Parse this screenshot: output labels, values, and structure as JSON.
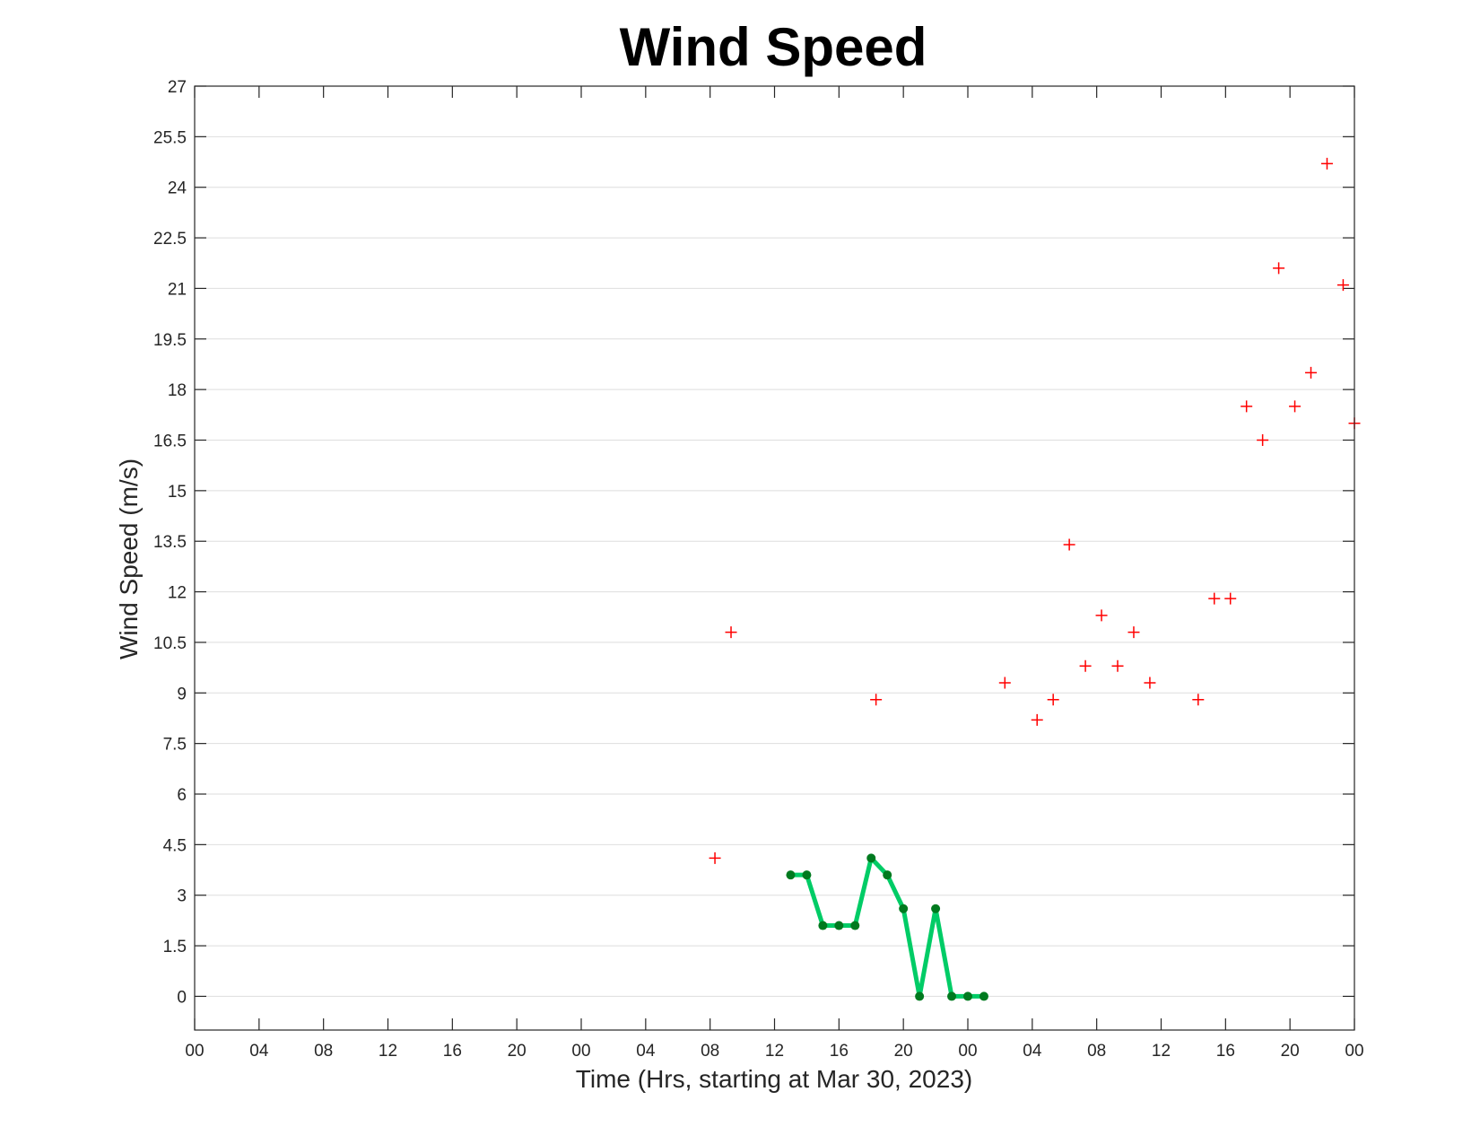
{
  "chart_data": {
    "type": "line",
    "title": "Wind Speed",
    "xlabel": "Time (Hrs, starting at Mar 30, 2023)",
    "ylabel": "Wind Speed (m/s)",
    "x_unit": "hours",
    "xlim": [
      0,
      72
    ],
    "ylim": [
      -1,
      27
    ],
    "yticks": [
      0,
      1.5,
      3,
      4.5,
      6,
      7.5,
      9,
      10.5,
      12,
      13.5,
      15,
      16.5,
      18,
      19.5,
      21,
      22.5,
      24,
      25.5,
      27
    ],
    "ytick_labels": [
      "0",
      "1.5",
      "3",
      "4.5",
      "6",
      "7.5",
      "9",
      "10.5",
      "12",
      "13.5",
      "15",
      "16.5",
      "18",
      "19.5",
      "21",
      "22.5",
      "24",
      "25.5",
      "27"
    ],
    "xticks": [
      0,
      4,
      8,
      12,
      16,
      20,
      24,
      28,
      32,
      36,
      40,
      44,
      48,
      52,
      56,
      60,
      64,
      68,
      72
    ],
    "xtick_labels": [
      "00",
      "04",
      "08",
      "12",
      "16",
      "20",
      "00",
      "04",
      "08",
      "12",
      "16",
      "20",
      "00",
      "04",
      "08",
      "12",
      "16",
      "20",
      "00"
    ],
    "grid": "horizontal",
    "series": [
      {
        "style": "line-with-markers",
        "color": "#00cc66",
        "marker_color": "#007a1f",
        "x": [
          37,
          38,
          39,
          40,
          41,
          42,
          43,
          44,
          45,
          46,
          47,
          48,
          49
        ],
        "y": [
          3.6,
          3.6,
          2.1,
          2.1,
          2.1,
          4.1,
          3.6,
          2.6,
          0,
          2.6,
          0,
          0,
          0
        ]
      },
      {
        "style": "plus-markers",
        "color": "#ff0000",
        "x": [
          32.3,
          33.3,
          42.3,
          50.3,
          52.3,
          53.3,
          54.3,
          55.3,
          56.3,
          57.3,
          58.3,
          59.3,
          62.3,
          63.3,
          64.3,
          65.3,
          66.3,
          67.3,
          68.3,
          69.3,
          70.3,
          71.3,
          72.0
        ],
        "y": [
          4.1,
          10.8,
          8.8,
          9.3,
          8.2,
          8.8,
          13.4,
          9.8,
          11.3,
          9.8,
          10.8,
          9.3,
          8.8,
          11.8,
          11.8,
          17.5,
          16.5,
          21.6,
          17.5,
          18.5,
          24.7,
          21.1,
          17.0
        ]
      }
    ]
  }
}
